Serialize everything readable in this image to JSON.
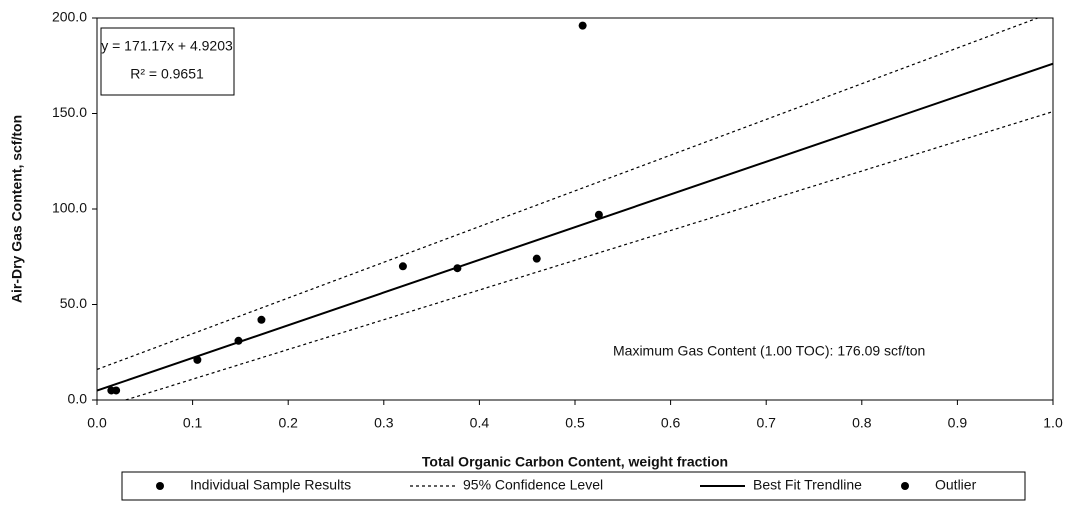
{
  "chart_data": {
    "type": "scatter",
    "xlabel": "Total Organic Carbon Content, weight fraction",
    "ylabel": "Air-Dry Gas Content, scf/ton",
    "xlim": [
      0,
      1
    ],
    "ylim": [
      0,
      200
    ],
    "xticks": [
      {
        "value": 0,
        "label": "0.0"
      },
      0.1,
      0.2,
      0.3,
      0.4,
      0.5,
      0.6,
      0.7,
      0.8,
      0.9,
      {
        "value": 1,
        "label": "1.0"
      }
    ],
    "yticks": [
      {
        "value": 0,
        "label": "0.0"
      },
      {
        "value": 50,
        "label": "50.0"
      },
      {
        "value": 100,
        "label": "100.0"
      },
      {
        "value": 150,
        "label": "150.0"
      },
      {
        "value": 200,
        "label": "200.0"
      }
    ],
    "grid": false,
    "equation": "y = 171.17x + 4.9203",
    "r_squared": "R² = 0.9651",
    "annotation": "Maximum Gas Content (1.00 TOC): 176.09 scf/ton",
    "legend": "bottom",
    "series": [
      {
        "name": "Individual Sample Results",
        "type": "scatter",
        "color": "#000000",
        "x": [
          0.015,
          0.02,
          0.105,
          0.148,
          0.172,
          0.32,
          0.377,
          0.46,
          0.525
        ],
        "values": [
          5,
          5,
          21,
          31,
          42,
          70,
          69,
          74,
          97
        ]
      },
      {
        "name": "95% Confidence Level",
        "type": "line",
        "color": "#000000",
        "dash": true,
        "x": [
          0,
          1,
          null,
          0.03,
          1
        ],
        "values": [
          16,
          203,
          null,
          0,
          151
        ]
      },
      {
        "name": "Best Fit Trendline",
        "type": "line",
        "color": "#000000",
        "dash": false,
        "x": [
          0,
          1
        ],
        "values": [
          4.92,
          176.09
        ]
      },
      {
        "name": "Outlier",
        "type": "scatter",
        "color": "#000000",
        "x": [
          0.508
        ],
        "values": [
          196
        ]
      }
    ]
  }
}
